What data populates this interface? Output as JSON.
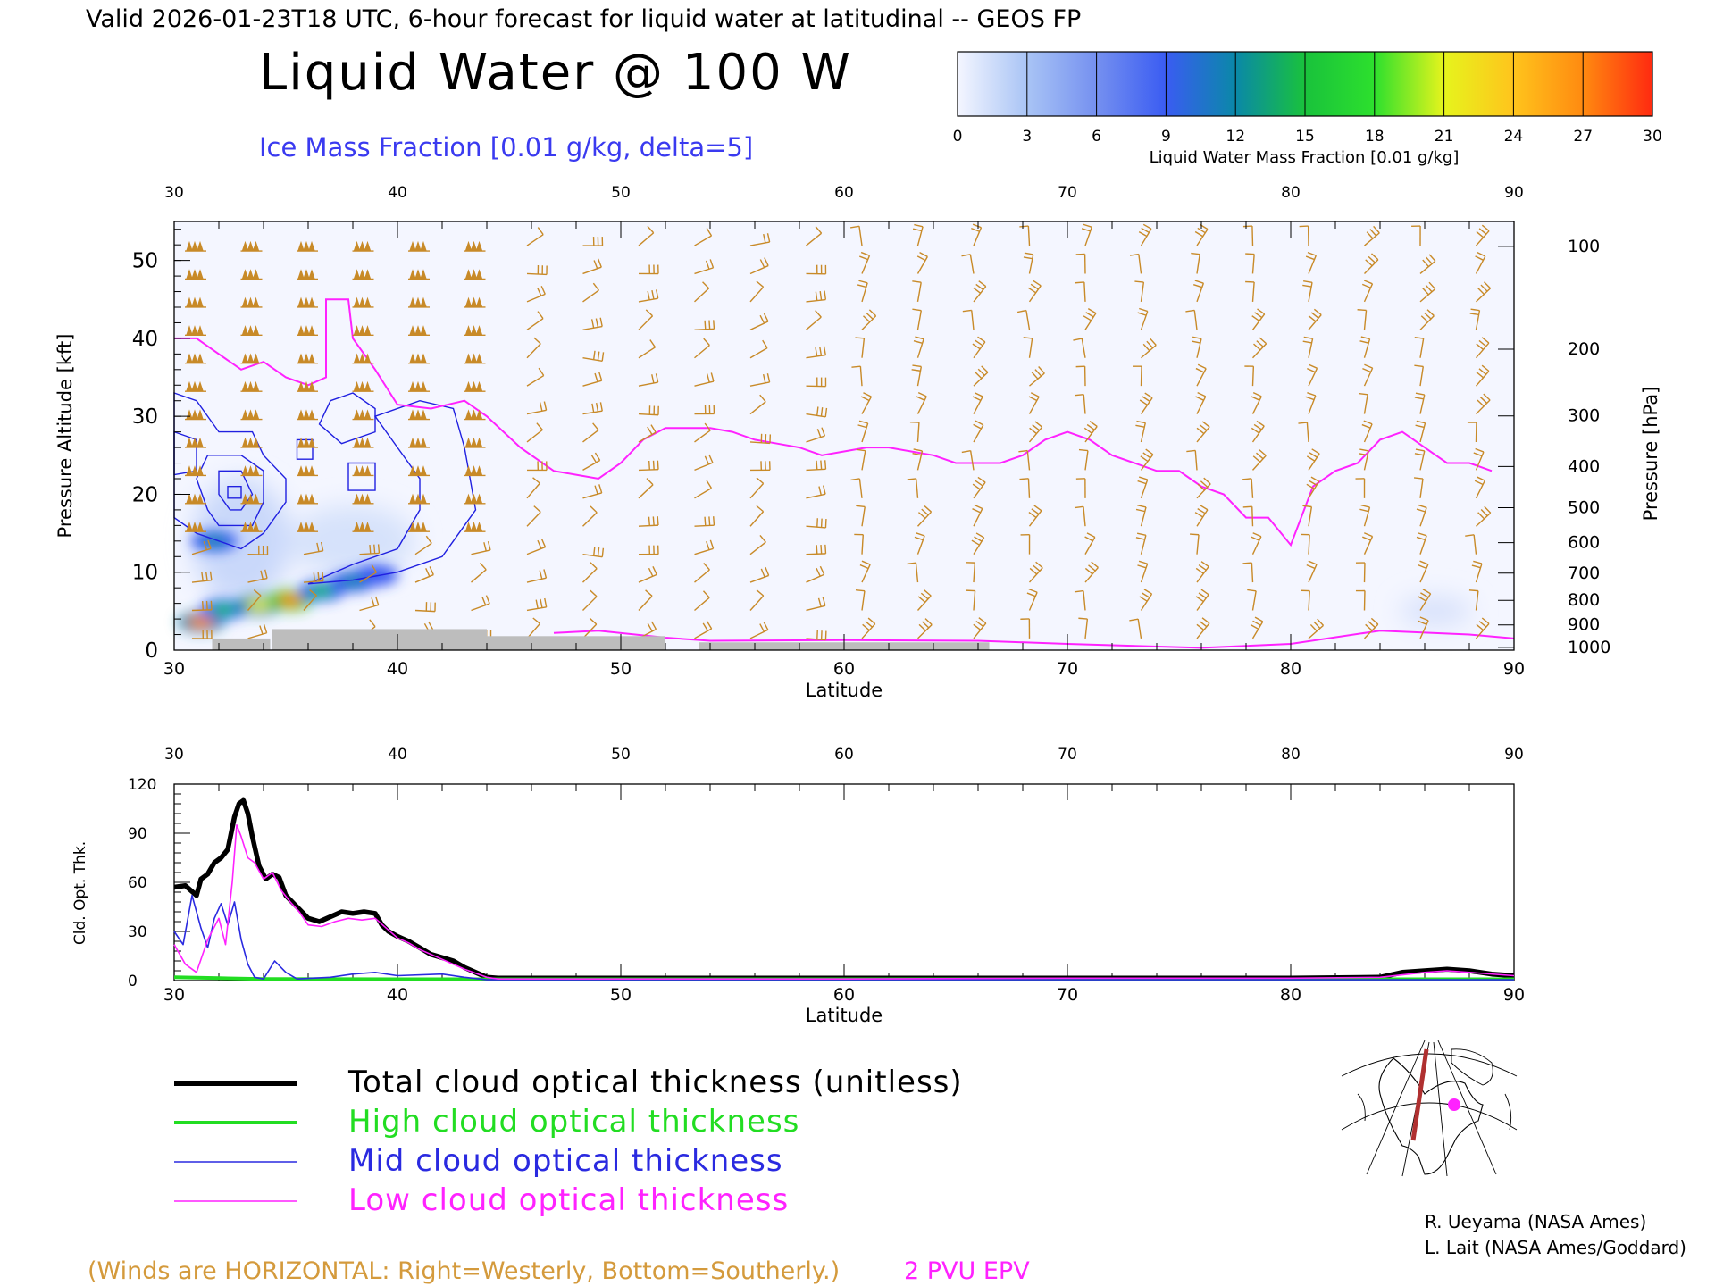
{
  "header": {
    "valid_line": "Valid 2026-01-23T18 UTC, 6-hour forecast for liquid water at latitudinal -- GEOS FP",
    "main_title": "Liquid Water @ 100 W",
    "subtitle": "Ice Mass Fraction [0.01 g/kg, delta=5]",
    "subtitle_color": "#3a3af0"
  },
  "colorbar": {
    "ticks": [
      "0",
      "3",
      "6",
      "9",
      "12",
      "15",
      "18",
      "21",
      "24",
      "27",
      "30"
    ],
    "label": "Liquid Water Mass Fraction [0.01 g/kg]",
    "colors": [
      "#f4f6ff",
      "#a9c4f5",
      "#7590f0",
      "#3a5cf2",
      "#0a88a8",
      "#19c23c",
      "#2de02d",
      "#e6f41c",
      "#ffc41c",
      "#ff8a10",
      "#ff2a10"
    ]
  },
  "chart_data": [
    {
      "type": "heatmap",
      "title": "Liquid Water @ 100 W",
      "xlabel": "Latitude",
      "ylabel": "Pressure Altitude [kft]",
      "y2label": "Pressure [hPa]",
      "xlim": [
        30,
        90
      ],
      "ylim": [
        0,
        55
      ],
      "x_ticks": [
        "30",
        "40",
        "50",
        "60",
        "70",
        "80",
        "90"
      ],
      "y_ticks": [
        "0",
        "10",
        "20",
        "30",
        "40",
        "50"
      ],
      "pressure_ticks": [
        "100",
        "200",
        "300",
        "400",
        "500",
        "600",
        "700",
        "800",
        "900",
        "1000"
      ],
      "grid": false,
      "liquid_water_cores": [
        {
          "lat": 31.2,
          "alt": 3.6,
          "value": 26
        },
        {
          "lat": 32.2,
          "alt": 5.2,
          "value": 16
        },
        {
          "lat": 33.8,
          "alt": 5.8,
          "value": 22
        },
        {
          "lat": 35.2,
          "alt": 6.4,
          "value": 27
        },
        {
          "lat": 36.6,
          "alt": 7.6,
          "value": 16
        },
        {
          "lat": 38.0,
          "alt": 8.8,
          "value": 13
        },
        {
          "lat": 39.0,
          "alt": 9.6,
          "value": 10
        },
        {
          "lat": 31.8,
          "alt": 14.0,
          "value": 12
        }
      ],
      "epv_2pvu_line": [
        [
          30,
          40
        ],
        [
          31,
          40
        ],
        [
          32,
          38
        ],
        [
          33,
          36
        ],
        [
          34,
          37
        ],
        [
          35,
          35
        ],
        [
          36,
          34
        ],
        [
          36.8,
          35
        ],
        [
          36.8,
          45
        ],
        [
          37.8,
          45
        ],
        [
          38,
          40
        ],
        [
          39,
          36
        ],
        [
          40,
          31.5
        ],
        [
          41.5,
          31
        ],
        [
          43,
          32
        ],
        [
          44,
          30
        ],
        [
          45.5,
          26
        ],
        [
          47,
          23
        ],
        [
          48,
          22.5
        ],
        [
          49,
          22
        ],
        [
          50,
          24
        ],
        [
          51,
          27
        ],
        [
          52,
          28.5
        ],
        [
          53,
          28.5
        ],
        [
          54,
          28.5
        ],
        [
          55,
          28
        ],
        [
          56,
          27
        ],
        [
          57,
          26.5
        ],
        [
          58,
          26
        ],
        [
          59,
          25
        ],
        [
          60,
          25.5
        ],
        [
          61,
          26
        ],
        [
          62,
          26
        ],
        [
          63,
          25.5
        ],
        [
          64,
          25
        ],
        [
          65,
          24
        ],
        [
          66,
          24
        ],
        [
          67,
          24
        ],
        [
          68,
          25
        ],
        [
          69,
          27
        ],
        [
          70,
          28
        ],
        [
          71,
          27
        ],
        [
          72,
          25
        ],
        [
          73,
          24
        ],
        [
          74,
          23
        ],
        [
          75,
          23
        ],
        [
          76,
          21
        ],
        [
          77,
          20
        ],
        [
          78,
          17
        ],
        [
          79,
          17
        ],
        [
          80,
          13.5
        ],
        [
          81,
          21
        ],
        [
          82,
          23
        ],
        [
          83,
          24
        ],
        [
          84,
          27
        ],
        [
          85,
          28
        ],
        [
          86,
          26
        ],
        [
          87,
          24
        ],
        [
          88,
          24
        ],
        [
          89,
          23
        ]
      ],
      "epv_2pvu_surface_line": [
        [
          47,
          2.2
        ],
        [
          49,
          2.5
        ],
        [
          52,
          1.6
        ],
        [
          54,
          1.2
        ],
        [
          60,
          1.3
        ],
        [
          66,
          1.2
        ],
        [
          70,
          0.8
        ],
        [
          76,
          0.3
        ],
        [
          80,
          0.8
        ],
        [
          84,
          2.5
        ],
        [
          88,
          2.0
        ],
        [
          90,
          1.5
        ]
      ],
      "ice_contour_levels": [
        5,
        10,
        15,
        20,
        25
      ],
      "ice_contours": [
        [
          [
            30,
            33
          ],
          [
            31,
            32
          ],
          [
            32,
            28
          ],
          [
            33,
            28
          ],
          [
            33.5,
            28
          ],
          [
            34,
            25
          ],
          [
            35,
            22
          ],
          [
            35,
            19
          ],
          [
            34,
            15
          ],
          [
            33,
            13
          ],
          [
            32,
            14
          ],
          [
            31,
            15
          ],
          [
            30,
            17
          ]
        ],
        [
          [
            31.5,
            25
          ],
          [
            33,
            25
          ],
          [
            34,
            23
          ],
          [
            34,
            19
          ],
          [
            33.5,
            16
          ],
          [
            32,
            16
          ],
          [
            31.5,
            18
          ],
          [
            31,
            22
          ]
        ],
        [
          [
            32,
            23
          ],
          [
            33,
            23
          ],
          [
            33.5,
            20
          ],
          [
            33,
            18
          ],
          [
            32.5,
            18
          ],
          [
            32,
            20
          ]
        ],
        [
          [
            32.4,
            21
          ],
          [
            33,
            21
          ],
          [
            33,
            19.5
          ],
          [
            32.4,
            19.5
          ]
        ],
        [
          [
            30,
            28
          ],
          [
            31,
            27
          ],
          [
            31,
            23
          ],
          [
            30,
            22.5
          ]
        ],
        [
          [
            37,
            32
          ],
          [
            38,
            33
          ],
          [
            39,
            31
          ],
          [
            39,
            28
          ],
          [
            37.5,
            26.5
          ],
          [
            36.5,
            29
          ]
        ],
        [
          [
            37.8,
            24
          ],
          [
            39,
            24
          ],
          [
            39,
            20.5
          ],
          [
            37.8,
            20.5
          ]
        ],
        [
          [
            39,
            30
          ],
          [
            41,
            32
          ],
          [
            42.5,
            31
          ],
          [
            43,
            26
          ],
          [
            43.5,
            18
          ],
          [
            42,
            12
          ],
          [
            40,
            10
          ],
          [
            38,
            9
          ],
          [
            36,
            8.5
          ],
          [
            38,
            11
          ],
          [
            40,
            13
          ],
          [
            41,
            18
          ],
          [
            41,
            22
          ],
          [
            40,
            26
          ]
        ],
        [
          [
            35.5,
            27
          ],
          [
            36.2,
            27
          ],
          [
            36.2,
            24.5
          ],
          [
            35.5,
            24.5
          ]
        ]
      ],
      "ground_terrain": [
        [
          31.7,
          34.3,
          1.5
        ],
        [
          34.4,
          44,
          2.7
        ],
        [
          44,
          52,
          1.8
        ],
        [
          53.5,
          66.5,
          1.0
        ]
      ]
    },
    {
      "type": "line",
      "xlabel": "Latitude",
      "ylabel": "Cld. Opt. Thk.",
      "xlim": [
        30,
        90
      ],
      "ylim": [
        0,
        120
      ],
      "x_ticks": [
        "30",
        "40",
        "50",
        "60",
        "70",
        "80",
        "90"
      ],
      "y_ticks": [
        "0",
        "30",
        "60",
        "90",
        "120"
      ],
      "grid": false,
      "series": [
        {
          "name": "Total cloud optical thickness (unitless)",
          "color": "#000000",
          "width": 5.5,
          "points": [
            [
              30,
              57
            ],
            [
              30.5,
              58
            ],
            [
              31,
              52
            ],
            [
              31.2,
              62
            ],
            [
              31.5,
              65
            ],
            [
              31.8,
              72
            ],
            [
              32.1,
              75
            ],
            [
              32.4,
              80
            ],
            [
              32.7,
              100
            ],
            [
              32.9,
              108
            ],
            [
              33.1,
              110
            ],
            [
              33.3,
              102
            ],
            [
              33.5,
              88
            ],
            [
              33.8,
              70
            ],
            [
              34.1,
              62
            ],
            [
              34.4,
              65
            ],
            [
              34.7,
              63
            ],
            [
              35,
              52
            ],
            [
              35.5,
              45
            ],
            [
              36,
              38
            ],
            [
              36.5,
              36
            ],
            [
              37,
              39
            ],
            [
              37.5,
              42
            ],
            [
              38,
              41
            ],
            [
              38.5,
              42
            ],
            [
              39,
              41
            ],
            [
              39.3,
              34
            ],
            [
              39.6,
              30
            ],
            [
              40,
              27
            ],
            [
              40.5,
              24
            ],
            [
              41,
              20
            ],
            [
              41.5,
              16
            ],
            [
              42,
              14
            ],
            [
              42.5,
              12
            ],
            [
              43,
              8
            ],
            [
              43.5,
              5
            ],
            [
              44,
              2
            ],
            [
              44.5,
              1.5
            ],
            [
              50,
              1.5
            ],
            [
              60,
              1.5
            ],
            [
              70,
              1.5
            ],
            [
              80,
              1.5
            ],
            [
              84,
              2
            ],
            [
              85,
              5
            ],
            [
              86,
              6
            ],
            [
              87,
              7
            ],
            [
              88,
              6
            ],
            [
              89,
              4
            ],
            [
              90,
              3
            ]
          ]
        },
        {
          "name": "High cloud optical thickness",
          "color": "#22dd22",
          "width": 4,
          "points": [
            [
              30,
              2
            ],
            [
              32,
              1.5
            ],
            [
              34,
              1
            ],
            [
              40,
              0.8
            ],
            [
              50,
              0.8
            ],
            [
              60,
              0.8
            ],
            [
              70,
              0.8
            ],
            [
              80,
              0.8
            ],
            [
              90,
              0.8
            ]
          ]
        },
        {
          "name": "Mid cloud optical thickness",
          "color": "#2a2ae0",
          "width": 1.6,
          "points": [
            [
              30,
              30
            ],
            [
              30.4,
              22
            ],
            [
              30.8,
              52
            ],
            [
              31.2,
              32
            ],
            [
              31.5,
              20
            ],
            [
              31.8,
              38
            ],
            [
              32.1,
              47
            ],
            [
              32.4,
              34
            ],
            [
              32.7,
              48
            ],
            [
              33,
              25
            ],
            [
              33.3,
              10
            ],
            [
              33.6,
              2
            ],
            [
              34,
              1
            ],
            [
              34.5,
              12
            ],
            [
              35,
              5
            ],
            [
              35.5,
              1
            ],
            [
              37,
              2
            ],
            [
              38,
              4
            ],
            [
              39,
              5
            ],
            [
              40,
              3
            ],
            [
              42,
              4
            ],
            [
              43,
              2
            ],
            [
              44,
              0.5
            ],
            [
              60,
              0.5
            ],
            [
              80,
              0.5
            ],
            [
              90,
              0.5
            ]
          ]
        },
        {
          "name": "Low cloud optical thickness",
          "color": "#ff22ff",
          "width": 1.6,
          "points": [
            [
              30,
              22
            ],
            [
              30.5,
              10
            ],
            [
              31,
              5
            ],
            [
              31.5,
              25
            ],
            [
              32,
              38
            ],
            [
              32.3,
              22
            ],
            [
              32.6,
              60
            ],
            [
              32.8,
              95
            ],
            [
              33,
              88
            ],
            [
              33.3,
              75
            ],
            [
              33.6,
              72
            ],
            [
              34,
              62
            ],
            [
              34.4,
              66
            ],
            [
              34.8,
              55
            ],
            [
              35.2,
              48
            ],
            [
              35.6,
              42
            ],
            [
              36,
              34
            ],
            [
              36.6,
              33
            ],
            [
              37.2,
              36
            ],
            [
              37.8,
              38
            ],
            [
              38.4,
              37
            ],
            [
              39,
              38
            ],
            [
              39.5,
              32
            ],
            [
              40,
              26
            ],
            [
              40.5,
              23
            ],
            [
              41,
              19
            ],
            [
              41.5,
              16
            ],
            [
              42,
              13
            ],
            [
              43,
              7
            ],
            [
              44,
              2
            ],
            [
              44.5,
              1
            ],
            [
              60,
              1
            ],
            [
              70,
              1.5
            ],
            [
              80,
              1.5
            ],
            [
              84,
              2
            ],
            [
              86,
              5
            ],
            [
              87,
              6
            ],
            [
              88,
              5
            ],
            [
              90,
              3
            ]
          ]
        }
      ]
    }
  ],
  "legend": {
    "items": [
      {
        "label": "Total cloud optical thickness (unitless)",
        "color": "#000000",
        "text_color": "#000000"
      },
      {
        "label": "High cloud optical thickness",
        "color": "#22dd22",
        "text_color": "#22dd22"
      },
      {
        "label": "Mid cloud optical thickness",
        "color": "#2a2ae0",
        "text_color": "#2a2ae0"
      },
      {
        "label": "Low cloud optical thickness",
        "color": "#ff22ff",
        "text_color": "#ff22ff"
      }
    ]
  },
  "footer": {
    "winds_note": "(Winds are HORIZONTAL: Right=Westerly, Bottom=Southerly.)",
    "winds_note_color": "#d49a3c",
    "epv_label": "2 PVU EPV",
    "epv_color": "#ff22ff",
    "credit_1": "R. Ueyama (NASA Ames)",
    "credit_2": "L. Lait (NASA Ames/Goddard)"
  },
  "map_inset": {
    "icon": "north-america-polar-map-icon",
    "track_color": "#b03030",
    "marker_color": "#ff22ff"
  },
  "wind_barb_color": "#c88a28"
}
